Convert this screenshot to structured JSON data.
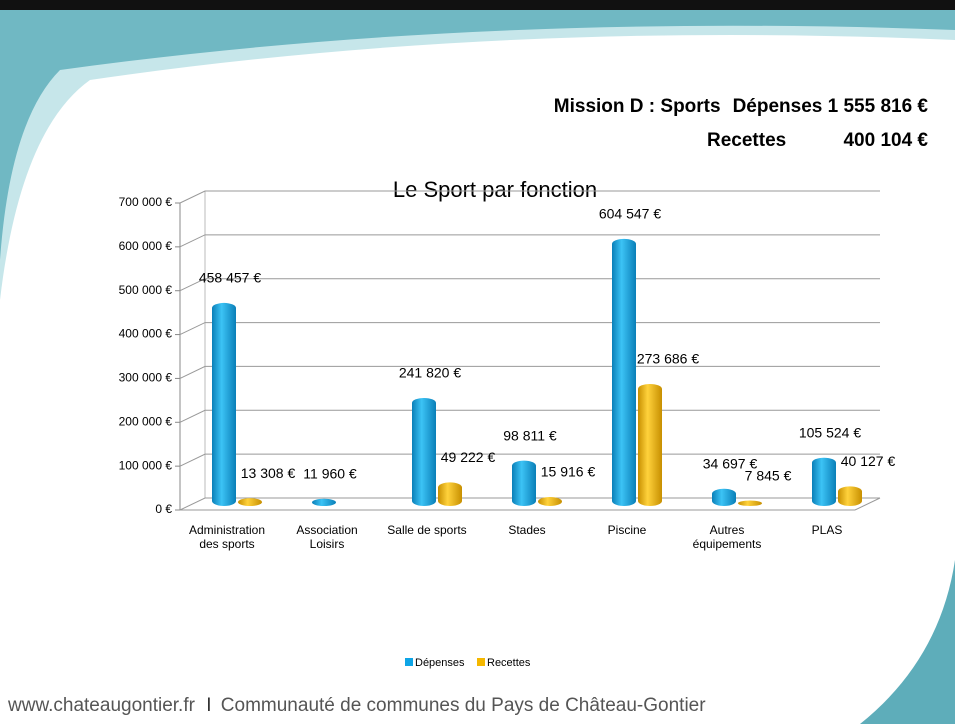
{
  "header": {
    "mission": "Mission D : Sports",
    "depenses": "Dépenses 1 555 816 €",
    "recettes_label": "Recettes",
    "recettes_value": "400 104 €"
  },
  "footer": {
    "site": "www.chateaugontier.fr",
    "org": "Communauté de communes du Pays de Château-Gontier"
  },
  "chart_data": {
    "type": "bar",
    "title": "Le Sport par fonction",
    "categories": [
      "Administration des sports",
      "Association Loisirs",
      "Salle de sports",
      "Stades",
      "Piscine",
      "Autres équipements",
      "PLAS"
    ],
    "series": [
      {
        "name": "Dépenses",
        "color": "#0ea5e6",
        "values": [
          458457,
          11960,
          241820,
          98811,
          604547,
          34697,
          105524
        ],
        "value_labels": [
          "458 457 €",
          "11 960 €",
          "241 820 €",
          "98 811 €",
          "604 547 €",
          "34 697 €",
          "105 524 €"
        ]
      },
      {
        "name": "Recettes",
        "color": "#f5b800",
        "values": [
          13308,
          null,
          49222,
          15916,
          273686,
          7845,
          40127
        ],
        "value_labels": [
          "13 308 €",
          null,
          "49 222 €",
          "15 916 €",
          "273 686 €",
          "7 845 €",
          "40 127 €"
        ]
      }
    ],
    "ylim": [
      0,
      700000
    ],
    "yticks": [
      {
        "value": 0,
        "label": "0 €"
      },
      {
        "value": 100000,
        "label": "100 000 €"
      },
      {
        "value": 200000,
        "label": "200 000 €"
      },
      {
        "value": 300000,
        "label": "300 000 €"
      },
      {
        "value": 400000,
        "label": "400 000 €"
      },
      {
        "value": 500000,
        "label": "500 000 €"
      },
      {
        "value": 600000,
        "label": "600 000 €"
      },
      {
        "value": 700000,
        "label": "700 000 €"
      }
    ],
    "grid": true,
    "legend": "bottom"
  }
}
